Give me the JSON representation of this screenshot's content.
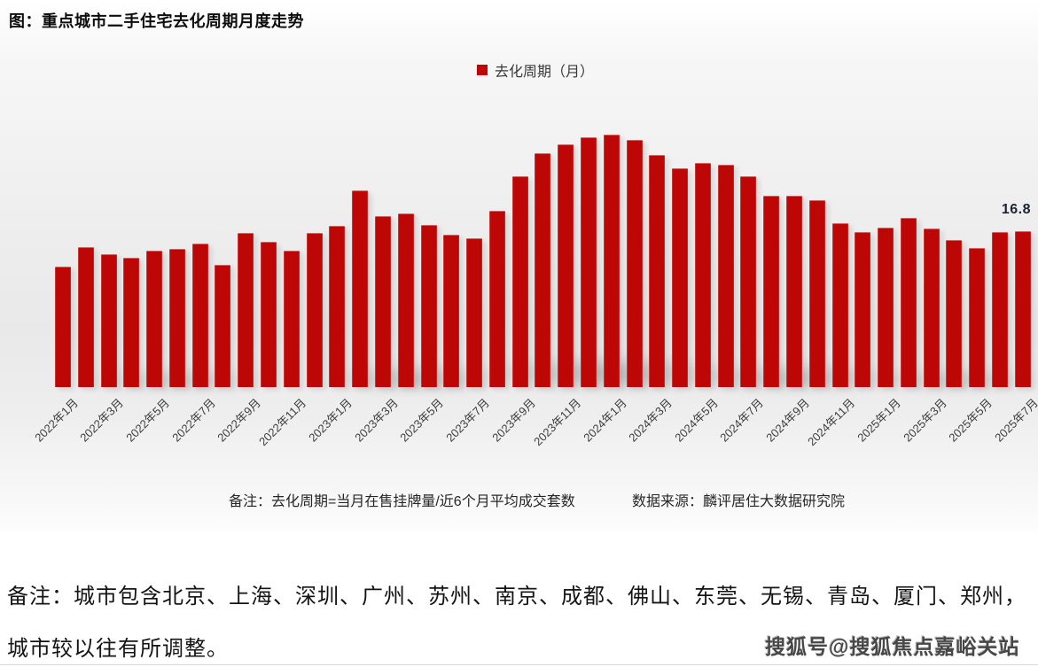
{
  "header": {
    "title": "图：重点城市二手住宅去化周期月度走势"
  },
  "legend": {
    "label": "去化周期（月）",
    "swatch_color": "#bd0707"
  },
  "chart_data": {
    "type": "bar",
    "title": "重点城市二手住宅去化周期月度走势",
    "series_name": "去化周期（月）",
    "xlabel": "",
    "ylabel": "",
    "ylim": [
      0,
      28.3
    ],
    "grid": false,
    "legend_position": "top-center",
    "bar_color": "#bd0707",
    "categories": [
      "2022年1月",
      "2022年2月",
      "2022年3月",
      "2022年4月",
      "2022年5月",
      "2022年6月",
      "2022年7月",
      "2022年8月",
      "2022年9月",
      "2022年10月",
      "2022年11月",
      "2022年12月",
      "2023年1月",
      "2023年2月",
      "2023年3月",
      "2023年4月",
      "2023年5月",
      "2023年6月",
      "2023年7月",
      "2023年8月",
      "2023年9月",
      "2023年10月",
      "2023年11月",
      "2023年12月",
      "2024年1月",
      "2024年2月",
      "2024年3月",
      "2024年4月",
      "2024年5月",
      "2024年6月",
      "2024年7月",
      "2024年8月",
      "2024年9月",
      "2024年10月",
      "2024年11月",
      "2024年12月",
      "2025年1月",
      "2025年2月",
      "2025年3月",
      "2025年4月",
      "2025年5月",
      "2025年6月",
      "2025年7月"
    ],
    "values": [
      13.0,
      15.1,
      14.3,
      13.9,
      14.7,
      14.9,
      15.4,
      13.2,
      16.6,
      15.6,
      14.7,
      16.6,
      17.3,
      21.2,
      18.4,
      18.7,
      17.4,
      16.4,
      16.0,
      19.0,
      22.7,
      25.2,
      26.1,
      26.9,
      27.2,
      26.6,
      25.0,
      23.5,
      24.1,
      23.9,
      22.7,
      20.6,
      20.6,
      20.1,
      17.6,
      16.7,
      17.2,
      18.2,
      17.1,
      15.8,
      15.0,
      16.7,
      16.8
    ],
    "x_tick_labels": [
      "2022年1月",
      "2022年3月",
      "2022年5月",
      "2022年7月",
      "2022年9月",
      "2022年11月",
      "2023年1月",
      "2023年3月",
      "2023年5月",
      "2023年7月",
      "2023年9月",
      "2023年11月",
      "2024年1月",
      "2024年3月",
      "2024年5月",
      "2024年7月",
      "2024年9月",
      "2024年11月",
      "2025年1月",
      "2025年3月",
      "2025年5月",
      "2025年7月"
    ],
    "data_label": {
      "text": "16.8",
      "category": "2025年7月",
      "color": "#1c2333"
    }
  },
  "footnote": {
    "note": "备注：去化周期=当月在售挂牌量/近6个月平均成交套数",
    "source": "数据来源：麟评居住大数据研究院"
  },
  "bottom_note": {
    "line1": "备注：城市包含北京、上海、深圳、广州、苏州、南京、成都、佛山、东莞、无锡、青岛、厦门、郑州，",
    "line2": "城市较以往有所调整。"
  },
  "watermark": {
    "text": "搜狐号@搜狐焦点嘉峪关站"
  }
}
